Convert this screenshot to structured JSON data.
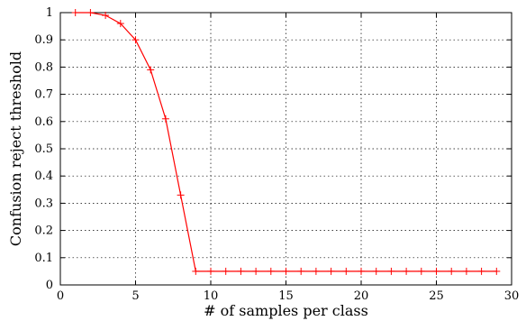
{
  "chart_data": {
    "type": "line",
    "title": "",
    "xlabel": "# of samples per class",
    "ylabel": "Confusion reject threshold",
    "xlim": [
      0,
      30
    ],
    "ylim": [
      0,
      1
    ],
    "x_ticks": [
      "0",
      "5",
      "10",
      "15",
      "20",
      "25",
      "30"
    ],
    "y_ticks": [
      "0",
      "0.1",
      "0.2",
      "0.3",
      "0.4",
      "0.5",
      "0.6",
      "0.7",
      "0.8",
      "0.9",
      "1"
    ],
    "grid": true,
    "legend": "none",
    "series": [
      {
        "color": "#ff0000",
        "marker": "plus",
        "x": [
          1,
          2,
          3,
          4,
          5,
          6,
          7,
          8,
          9,
          10,
          11,
          12,
          13,
          14,
          15,
          16,
          17,
          18,
          19,
          20,
          21,
          22,
          23,
          24,
          25,
          26,
          27,
          28,
          29
        ],
        "y": [
          1.0,
          1.0,
          0.99,
          0.96,
          0.9,
          0.79,
          0.61,
          0.33,
          0.05,
          0.05,
          0.05,
          0.05,
          0.05,
          0.05,
          0.05,
          0.05,
          0.05,
          0.05,
          0.05,
          0.05,
          0.05,
          0.05,
          0.05,
          0.05,
          0.05,
          0.05,
          0.05,
          0.05,
          0.05
        ]
      }
    ]
  }
}
